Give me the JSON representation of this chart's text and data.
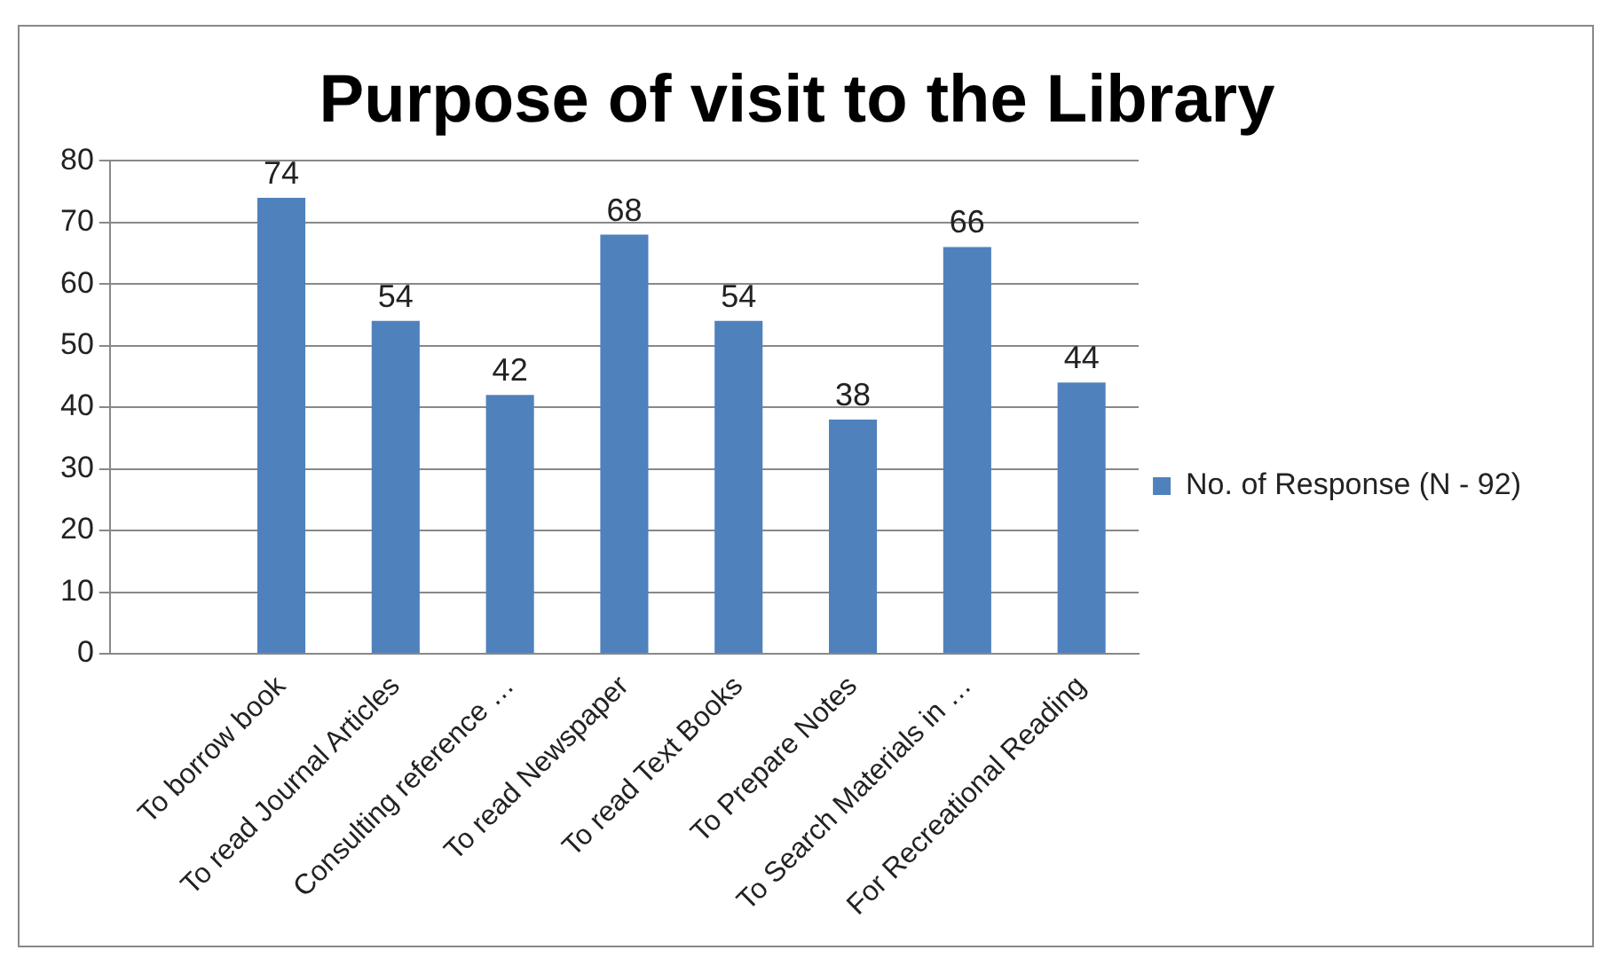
{
  "chart_data": {
    "type": "bar",
    "title": "Purpose of visit to the Library",
    "categories": [
      null,
      "To borrow book",
      "To read Journal Articles",
      "Consulting reference …",
      "To read Newspaper",
      "To read Text Books",
      "To Prepare Notes",
      "To Search Materials in …",
      "For Recreational Reading"
    ],
    "series": [
      {
        "name": "No. of Response (N - 92)",
        "color": "#4f81bd",
        "values": [
          null,
          74,
          54,
          42,
          68,
          54,
          38,
          66,
          44
        ]
      }
    ],
    "ylim": [
      0,
      80
    ],
    "yticks": [
      0,
      10,
      20,
      30,
      40,
      50,
      60,
      70,
      80
    ],
    "grid": "y",
    "legend": "right",
    "data_labels": true
  }
}
